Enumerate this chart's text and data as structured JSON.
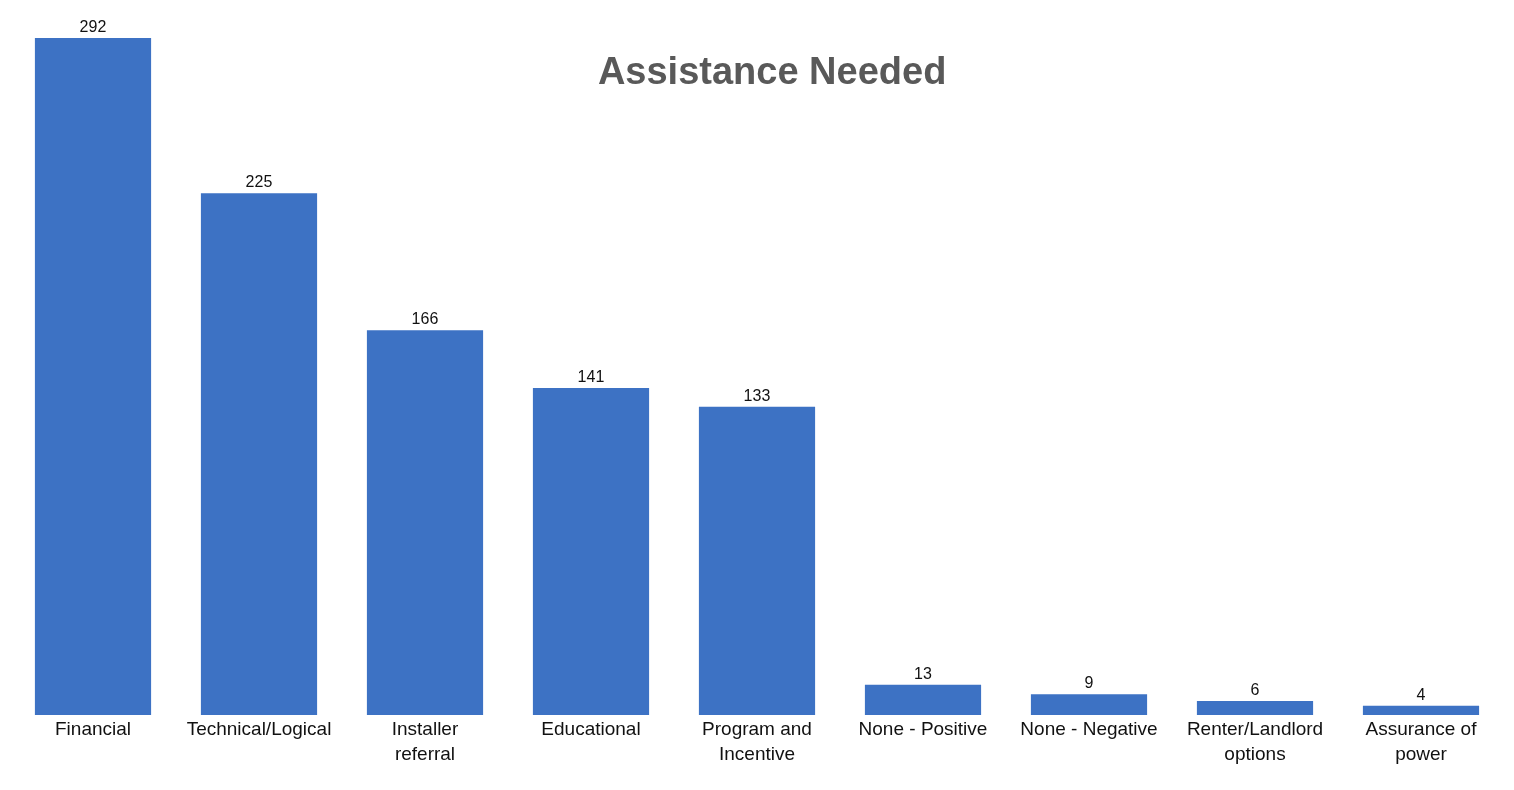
{
  "chart_data": {
    "type": "bar",
    "title": "Assistance Needed",
    "categories": [
      "Financial",
      "Technical/Logical",
      "Installer referral",
      "Educational",
      "Program and Incentive",
      "None - Positive",
      "None - Negative",
      "Renter/Landlord options",
      "Assurance of power"
    ],
    "values": [
      292,
      225,
      166,
      141,
      133,
      13,
      9,
      6,
      4
    ],
    "color": "#3d72c4",
    "data_labels": true,
    "legend": false
  }
}
